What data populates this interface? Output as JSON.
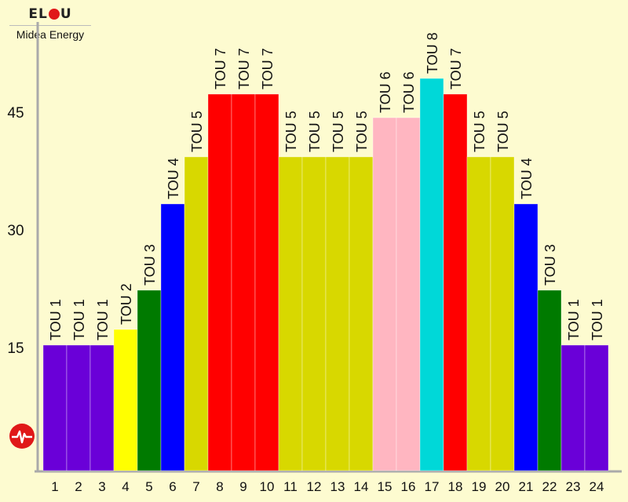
{
  "brand": {
    "logo_text_left": "EL",
    "logo_text_right": "U",
    "name": "Midea Energy"
  },
  "chart_data": {
    "type": "bar",
    "title": "",
    "xlabel": "",
    "ylabel": "",
    "ylim": [
      0,
      66
    ],
    "yticks": [
      15,
      30,
      45
    ],
    "grid": false,
    "categories": [
      "1",
      "2",
      "3",
      "4",
      "5",
      "6",
      "7",
      "8",
      "9",
      "10",
      "11",
      "12",
      "13",
      "14",
      "15",
      "16",
      "17",
      "18",
      "19",
      "20",
      "21",
      "22",
      "23",
      "24"
    ],
    "values": [
      16,
      16,
      16,
      18,
      23,
      34,
      40,
      48,
      48,
      48,
      40,
      40,
      40,
      40,
      45,
      45,
      50,
      48,
      40,
      40,
      34,
      23,
      16,
      16
    ],
    "labels": [
      "TOU 1",
      "TOU 1",
      "TOU 1",
      "TOU 2",
      "TOU 3",
      "TOU 4",
      "TOU 5",
      "TOU 7",
      "TOU 7",
      "TOU 7",
      "TOU 5",
      "TOU 5",
      "TOU 5",
      "TOU 5",
      "TOU 6",
      "TOU 6",
      "TOU 8",
      "TOU 7",
      "TOU 5",
      "TOU 5",
      "TOU 4",
      "TOU 3",
      "TOU 1",
      "TOU 1"
    ],
    "colors": {
      "TOU 1": "#6a00d8",
      "TOU 2": "#ffff00",
      "TOU 3": "#007a00",
      "TOU 4": "#0000ff",
      "TOU 5": "#d8d800",
      "TOU 6": "#ffb6c1",
      "TOU 7": "#ff0000",
      "TOU 8": "#00d8d8"
    },
    "axis_color": "#aaaaaa"
  }
}
